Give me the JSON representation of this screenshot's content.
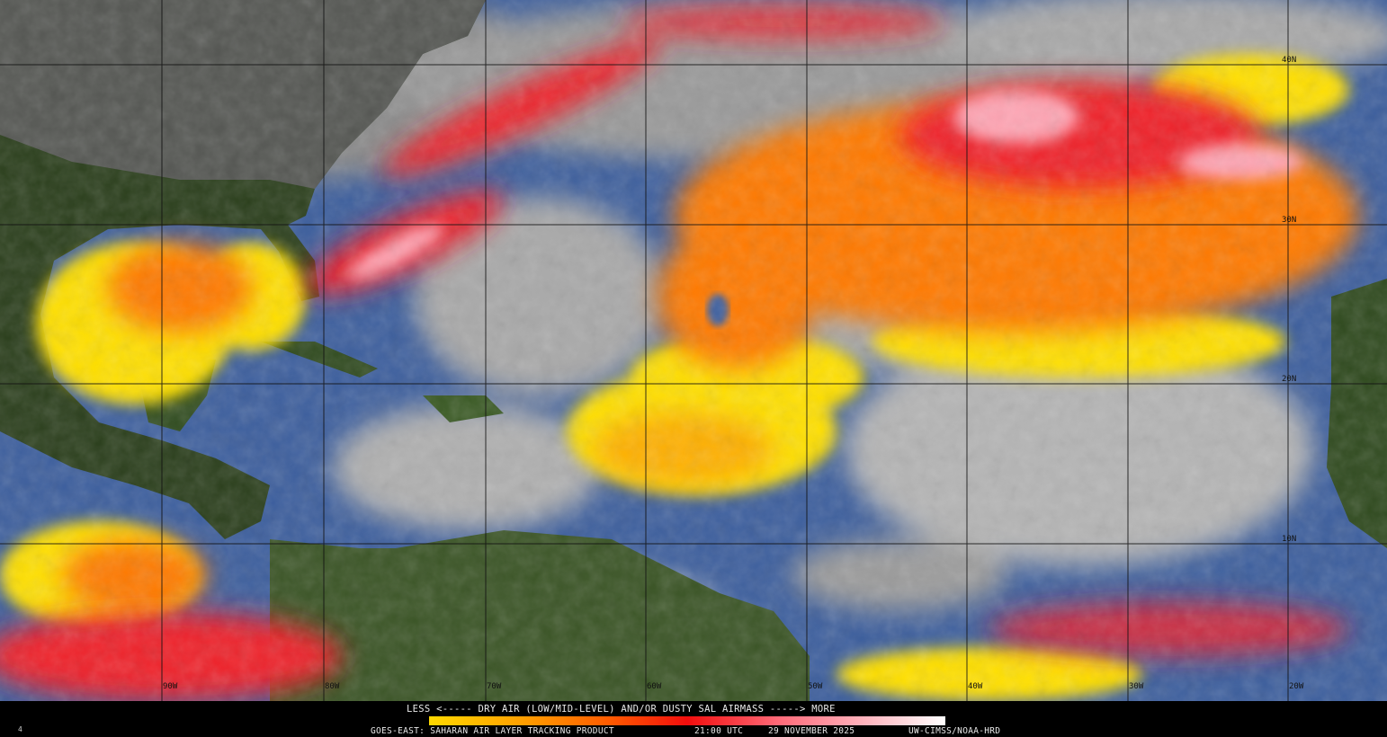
{
  "map": {
    "longitude_labels": [
      "90W",
      "80W",
      "70W",
      "60W",
      "50W",
      "40W",
      "30W",
      "20W"
    ],
    "latitude_labels": [
      "40N",
      "30N",
      "20N",
      "10N"
    ],
    "colors": {
      "ocean": "#3a5a9a",
      "clouds": "#b8b8b8",
      "land": "#2e4a1c",
      "dry_air_low": "#ffd800",
      "dry_air_mid": "#ff6a00",
      "dry_air_high": "#f01818",
      "dry_air_max": "#ffb0bc"
    }
  },
  "legend": {
    "title": "LESS <----- DRY AIR (LOW/MID-LEVEL) AND/OR DUSTY SAL AIRMASS -----> MORE",
    "colorbar_stops": [
      "#ffd800",
      "#ffa000",
      "#ff5a00",
      "#f20d0d",
      "#ff6b7a",
      "#ffb6c0",
      "#ffffff"
    ]
  },
  "footer": {
    "frame_number": "4",
    "product": "GOES-EAST: SAHARAN AIR LAYER TRACKING PRODUCT",
    "time": "21:00 UTC",
    "date": "29 NOVEMBER 2025",
    "credit": "UW-CIMSS/NOAA-HRD"
  }
}
